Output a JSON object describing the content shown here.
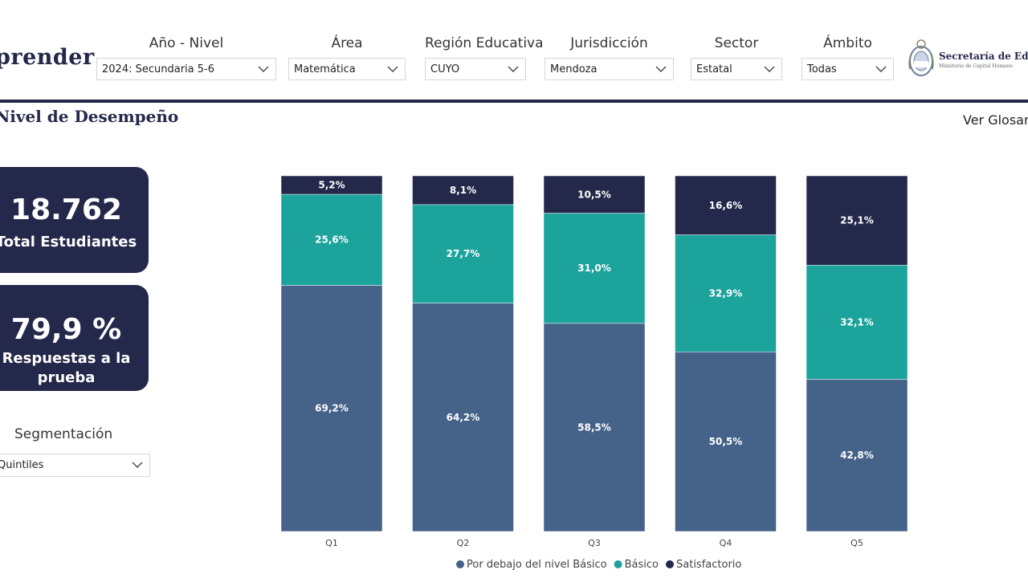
{
  "app": {
    "logo_text": "prender"
  },
  "filters": [
    {
      "label": "Año - Nivel",
      "value": "2024: Secundaria 5-6"
    },
    {
      "label": "Área",
      "value": "Matemática"
    },
    {
      "label": "Región Educativa",
      "value": "CUYO"
    },
    {
      "label": "Jurisdicción",
      "value": "Mendoza"
    },
    {
      "label": "Sector",
      "value": "Estatal"
    },
    {
      "label": "Ámbito",
      "value": "Todas"
    }
  ],
  "ministry": {
    "title": "Secretaría de Educación",
    "subtitle": "Ministerio de Capital Humano"
  },
  "page": {
    "title": "Nivel de Desempeño",
    "glossary_link": "Ver Glosario"
  },
  "kpis": {
    "students_value": "18.762",
    "students_label": "Total Estudiantes",
    "response_value": "79,9 %",
    "response_label": "Respuestas a la prueba"
  },
  "segmentation": {
    "label": "Segmentación",
    "value": "Quintiles"
  },
  "colors": {
    "navy": "#24284a",
    "teal": "#1ba39c",
    "slate": "#456289"
  },
  "chart_data": {
    "type": "bar",
    "stacked": true,
    "categories": [
      "Q1",
      "Q2",
      "Q3",
      "Q4",
      "Q5"
    ],
    "series": [
      {
        "name": "Por debajo del nivel Básico",
        "color": "#456289",
        "values": [
          69.2,
          64.2,
          58.5,
          50.5,
          42.8
        ],
        "labels": [
          "69,2%",
          "64,2%",
          "58,5%",
          "50,5%",
          "42,8%"
        ]
      },
      {
        "name": "Básico",
        "color": "#1ba39c",
        "values": [
          25.6,
          27.7,
          31.0,
          32.9,
          32.1
        ],
        "labels": [
          "25,6%",
          "27,7%",
          "31,0%",
          "32,9%",
          "32,1%"
        ]
      },
      {
        "name": "Satisfactorio",
        "color": "#24284a",
        "values": [
          5.2,
          8.1,
          10.5,
          16.6,
          25.1
        ],
        "labels": [
          "5,2%",
          "8,1%",
          "10,5%",
          "16,6%",
          "25,1%"
        ]
      }
    ],
    "ylim": [
      0,
      100
    ],
    "legend_position": "bottom-center"
  }
}
